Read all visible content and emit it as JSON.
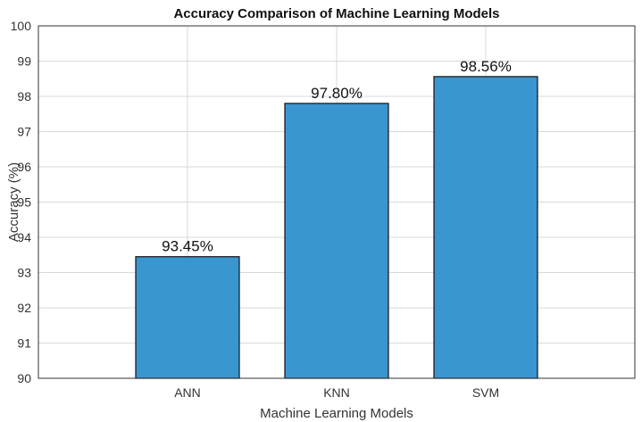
{
  "chart_data": {
    "type": "bar",
    "title": "Accuracy Comparison of Machine Learning Models",
    "xlabel": "Machine Learning Models",
    "ylabel": "Accuracy (%)",
    "categories": [
      "ANN",
      "KNN",
      "SVM"
    ],
    "values": [
      93.45,
      97.8,
      98.56
    ],
    "data_labels": [
      "93.45%",
      "97.80%",
      "98.56%"
    ],
    "y_ticks": [
      90,
      91,
      92,
      93,
      94,
      95,
      96,
      97,
      98,
      99,
      100
    ],
    "ylim": [
      90,
      100
    ],
    "grid": true,
    "bar_color": "#3a96cf"
  }
}
